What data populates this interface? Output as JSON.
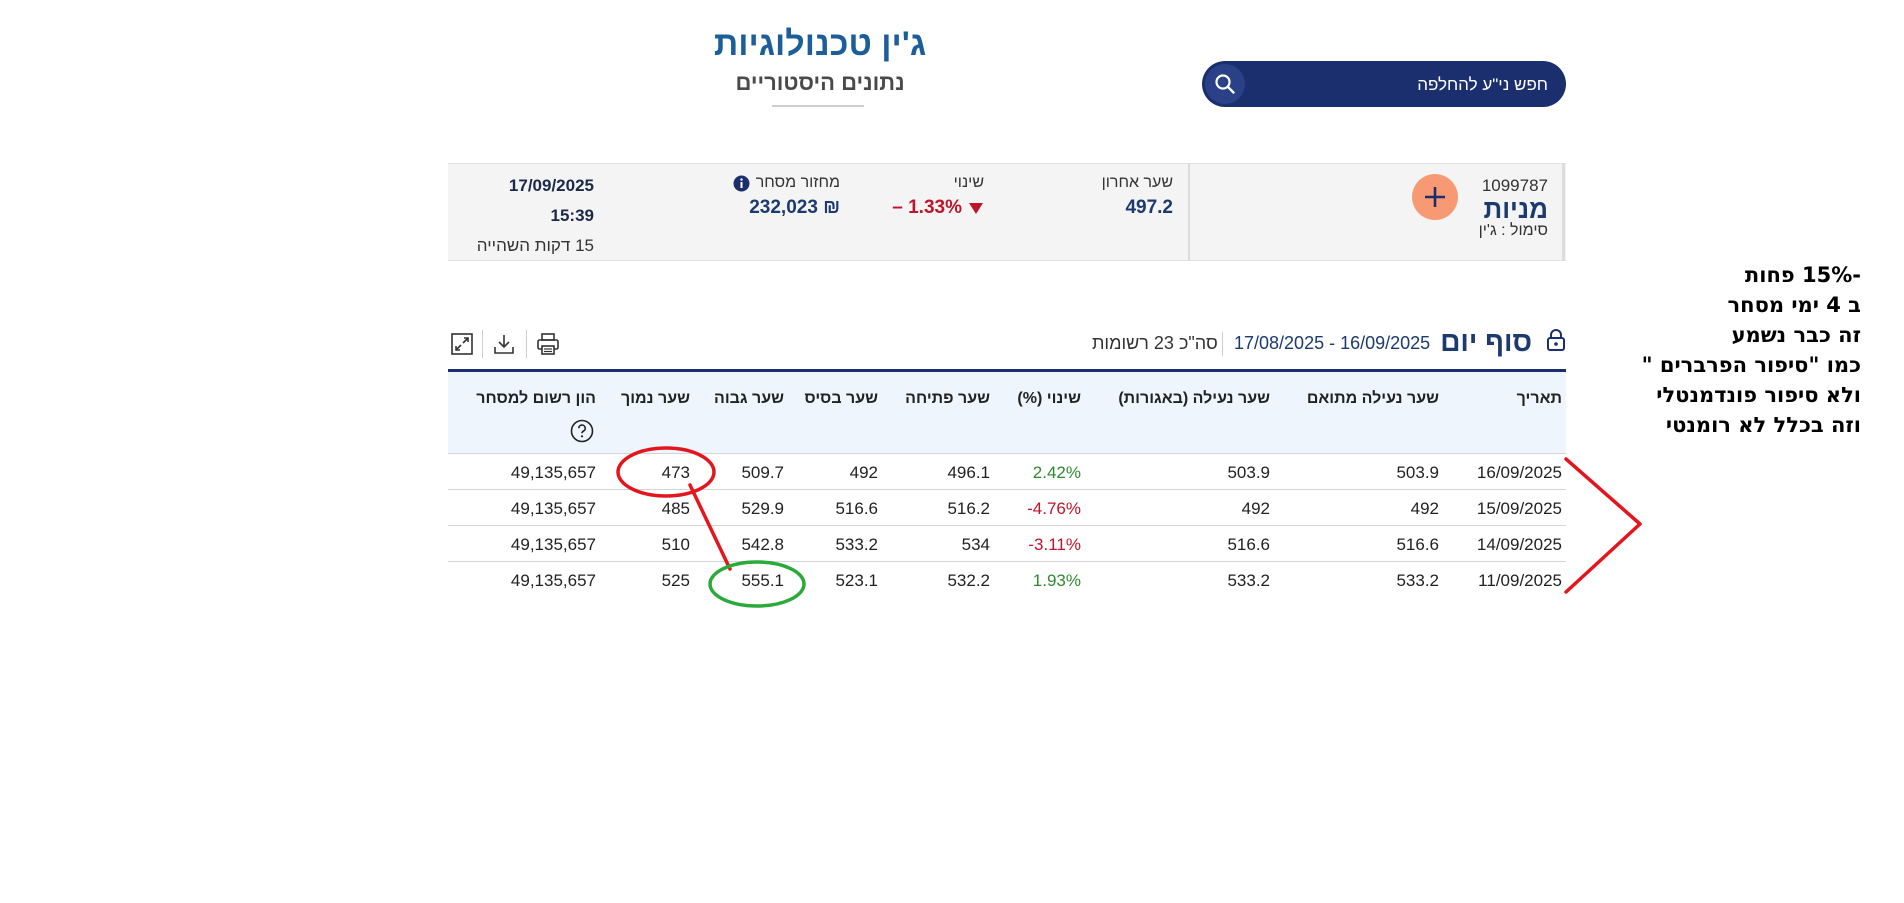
{
  "header": {
    "company_name": "ג'ין טכנולוגיות",
    "subtitle": "נתונים היסטוריים"
  },
  "search": {
    "placeholder": "חפש ני\"ע להחלפה"
  },
  "security": {
    "id_number": "1099787",
    "type": "מניות",
    "symbol_label": "סימול : ג'ין",
    "last_price_label": "שער אחרון",
    "last_price": "497.2",
    "change_label": "שינוי",
    "change_value": "– 1.33%",
    "turnover_label": "מחזור מסחר",
    "turnover_value": "232,023 ₪",
    "date": "17/09/2025",
    "time": "15:39",
    "delay_note": "15 דקות השהייה"
  },
  "section": {
    "title": "סוף יום",
    "date_range": "17/08/2025 - 16/09/2025",
    "records_count": "סה\"כ 23 רשומות"
  },
  "table": {
    "headers": {
      "date": "תאריך",
      "adj_close": "שער נעילה מתואם",
      "close": "שער נעילה (באגורות)",
      "change_pct": "שינוי (%)",
      "open": "שער פתיחה",
      "base": "שער בסיס",
      "high": "שער גבוה",
      "low": "שער נמוך",
      "market_cap": "הון רשום למסחר"
    },
    "rows": [
      {
        "date": "16/09/2025",
        "adj_close": "503.9",
        "close": "503.9",
        "change_pct": "2.42%",
        "open": "496.1",
        "base": "492",
        "high": "509.7",
        "low": "473",
        "market_cap": "49,135,657"
      },
      {
        "date": "15/09/2025",
        "adj_close": "492",
        "close": "492",
        "change_pct": "-4.76%",
        "open": "516.2",
        "base": "516.6",
        "high": "529.9",
        "low": "485",
        "market_cap": "49,135,657"
      },
      {
        "date": "14/09/2025",
        "adj_close": "516.6",
        "close": "516.6",
        "change_pct": "-3.11%",
        "open": "534",
        "base": "533.2",
        "high": "542.8",
        "low": "510",
        "market_cap": "49,135,657"
      },
      {
        "date": "11/09/2025",
        "adj_close": "533.2",
        "close": "533.2",
        "change_pct": "1.93%",
        "open": "532.2",
        "base": "523.1",
        "high": "555.1",
        "low": "525",
        "market_cap": "49,135,657"
      }
    ]
  },
  "annotation": {
    "lines": [
      "-15% פחות",
      "ב 4 ימי מסחר",
      "זה כבר נשמע",
      "כמו \"סיפור הפרברים \"",
      "ולא סיפור פונדמנטלי",
      "וזה בכלל לא רומנטי"
    ]
  },
  "colors": {
    "navy": "#1b2f6e",
    "title_blue": "#1b5e9a",
    "negative": "#c0142b",
    "positive": "#2e8b2e",
    "plus_button": "#f79a73",
    "annotation_red": "#e3161e",
    "annotation_green": "#2aaa3a"
  }
}
